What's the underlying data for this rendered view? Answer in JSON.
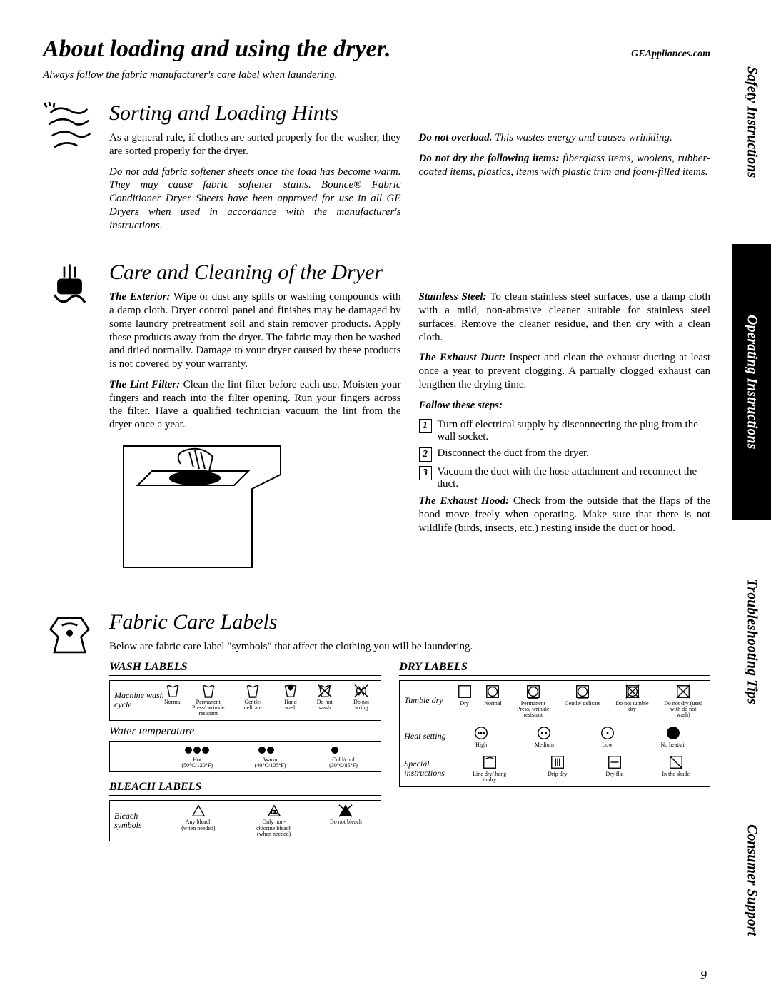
{
  "header": {
    "title": "About loading and using the dryer.",
    "url": "GEAppliances.com",
    "subtitle": "Always follow the fabric manufacturer's care label when laundering."
  },
  "sidebar": {
    "items": [
      {
        "label": "Safety Instructions",
        "style": "light",
        "flex": 2.2
      },
      {
        "label": "Operating Instructions",
        "style": "dark",
        "flex": 2.5
      },
      {
        "label": "Troubleshooting Tips",
        "style": "light",
        "flex": 2.2
      },
      {
        "label": "Consumer Support",
        "style": "light",
        "flex": 2.1
      }
    ]
  },
  "section1": {
    "title": "Sorting and Loading Hints",
    "p1": "As a general rule, if clothes are sorted properly for the washer, they are sorted properly for the dryer.",
    "p2": "Do not add fabric softener sheets once the load has become warm. They may cause fabric softener stains. Bounce® Fabric Conditioner Dryer Sheets have been approved for use in all GE Dryers when used in accordance with the manufacturer's instructions.",
    "p3_bold": "Do not overload.",
    "p3_rest": " This wastes energy and causes wrinkling.",
    "p4_bold": "Do not dry the following items:",
    "p4_rest": " fiberglass items, woolens, rubber-coated items, plastics, items with plastic trim and foam-filled items."
  },
  "section2": {
    "title": "Care and Cleaning of the Dryer",
    "ext_bold": "The Exterior:",
    "ext_rest": " Wipe or dust any spills or washing compounds with a damp cloth. Dryer control panel and finishes may be damaged by some laundry pretreatment soil and stain remover products. Apply these products away from the dryer. The fabric may then be washed and dried normally. Damage to your dryer caused by these products is not covered by your warranty.",
    "lint_bold": "The Lint Filter:",
    "lint_rest": " Clean the lint filter before each use. Moisten your fingers and reach into the filter opening. Run your fingers across the filter. Have a qualified technician vacuum the lint from the dryer once a year.",
    "steel_bold": "Stainless Steel:",
    "steel_rest": " To clean stainless steel surfaces, use a damp cloth with a mild, non-abrasive cleaner suitable for stainless steel surfaces. Remove the cleaner residue, and then dry with a clean cloth.",
    "duct_bold": "The Exhaust Duct:",
    "duct_rest": " Inspect and clean the exhaust ducting at least once a year to prevent clogging. A partially clogged exhaust can lengthen the drying time.",
    "follow": "Follow these steps:",
    "steps": [
      "Turn off electrical supply by disconnecting the plug from the wall socket.",
      "Disconnect the duct from the dryer.",
      "Vacuum the duct with the hose attachment and reconnect the duct."
    ],
    "hood_bold": "The Exhaust Hood:",
    "hood_rest": " Check from the outside that the flaps of the hood move freely when operating. Make sure that there is not wildlife (birds, insects, etc.) nesting inside the duct or hood."
  },
  "section3": {
    "title": "Fabric Care Labels",
    "intro": "Below are fabric care label \"symbols\" that affect the clothing you will be laundering.",
    "wash_title": "WASH LABELS",
    "dry_title": "DRY LABELS",
    "bleach_title": "BLEACH LABELS",
    "water_label": "Water temperature",
    "wash_rows": [
      {
        "label": "Machine wash cycle",
        "symbols": [
          "Normal",
          "Permanent Press/ wrinkle resistant",
          "Gentle/ delicate",
          "Hand wash",
          "Do not wash",
          "Do not wring"
        ]
      }
    ],
    "water_symbols": [
      {
        "dots": 3,
        "caption": "Hot (50°C/120°F)"
      },
      {
        "dots": 2,
        "caption": "Warm (40°C/105°F)"
      },
      {
        "dots": 1,
        "caption": "Cold/cool (30°C/85°F)"
      }
    ],
    "bleach_symbols": [
      "Any bleach (when needed)",
      "Only non-chlorine bleach (when needed)",
      "Do not bleach"
    ],
    "bleach_row_label": "Bleach symbols",
    "dry_rows": [
      {
        "label": "Tumble dry",
        "symbols": [
          "Dry",
          "Normal",
          "Permanent Press/ wrinkle resistant",
          "Gentle/ delicate",
          "Do not tumble dry",
          "Do not dry (used with do not wash)"
        ]
      },
      {
        "label": "Heat setting",
        "symbols": [
          "High",
          "Medium",
          "Low",
          "No heat/air"
        ]
      },
      {
        "label": "Special instructions",
        "symbols": [
          "Line dry/ hang to dry",
          "Drip dry",
          "Dry flat",
          "In the shade"
        ]
      }
    ]
  },
  "page_number": "9",
  "colors": {
    "text": "#000000",
    "bg": "#ffffff"
  }
}
